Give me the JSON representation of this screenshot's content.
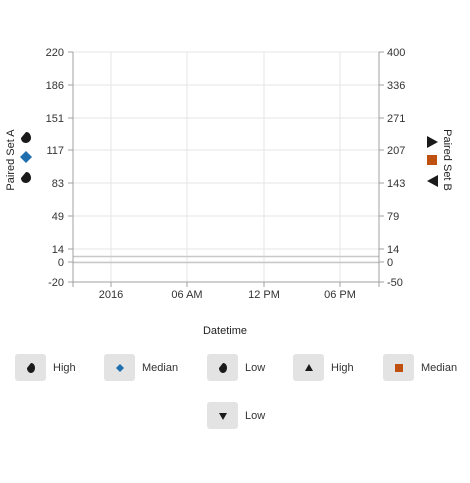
{
  "chart_data": {
    "type": "scatter",
    "title": "",
    "xlabel": "Datetime",
    "x_ticks": [
      "2016",
      "06 AM",
      "12 PM",
      "06 PM"
    ],
    "y_left": {
      "label": "Paired Set A",
      "ticks": [
        220,
        186,
        151,
        117,
        83,
        49,
        14,
        0,
        -20
      ],
      "range": [
        -20,
        220
      ]
    },
    "y_right": {
      "label": "Paired Set B",
      "ticks": [
        400,
        336,
        271,
        207,
        143,
        79,
        14,
        0,
        -50
      ],
      "range": [
        -50,
        400
      ]
    },
    "grid": true,
    "series": [
      {
        "name": "High",
        "axis": "A",
        "marker": "drop",
        "color": "#1a1a1a",
        "values": []
      },
      {
        "name": "Median",
        "axis": "A",
        "marker": "diamond",
        "color": "#1f6faf",
        "values": []
      },
      {
        "name": "Low",
        "axis": "A",
        "marker": "drop",
        "color": "#1a1a1a",
        "values": []
      },
      {
        "name": "High",
        "axis": "B",
        "marker": "triangle-up",
        "color": "#1a1a1a",
        "values": []
      },
      {
        "name": "Median",
        "axis": "B",
        "marker": "square",
        "color": "#c0500f",
        "values": []
      },
      {
        "name": "Low",
        "axis": "B",
        "marker": "triangle-down",
        "color": "#1a1a1a",
        "values": []
      }
    ]
  },
  "legend": {
    "items": [
      {
        "label": "High",
        "icon": "drop-icon",
        "color": "#1a1a1a"
      },
      {
        "label": "Median",
        "icon": "diamond-icon",
        "color": "#1f6faf"
      },
      {
        "label": "Low",
        "icon": "drop-icon",
        "color": "#1a1a1a"
      },
      {
        "label": "High",
        "icon": "triangle-up-icon",
        "color": "#1a1a1a"
      },
      {
        "label": "Median",
        "icon": "square-icon",
        "color": "#c0500f"
      },
      {
        "label": "Low",
        "icon": "triangle-down-icon",
        "color": "#1a1a1a"
      }
    ]
  }
}
